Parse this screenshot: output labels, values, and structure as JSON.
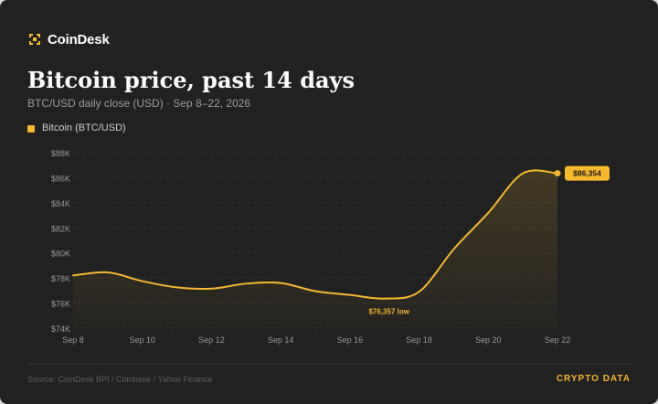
{
  "brand": {
    "name": "CoinDesk",
    "icon": "coindesk-logo-icon"
  },
  "header": {
    "title": "Bitcoin price, past 14 days",
    "subtitle": "BTC/USD daily close (USD) · Sep 8–22, 2026"
  },
  "legend": {
    "label": "Bitcoin (BTC/USD)"
  },
  "colors": {
    "background": "#212121",
    "accent": "#f5b82e",
    "grid": "#3a3a3a",
    "muted_text": "#9b9b9b"
  },
  "chart_data": {
    "type": "line",
    "title": "Bitcoin price, past 14 days",
    "subtitle": "BTC/USD daily close (USD) · Sep 8–22, 2026",
    "x": [
      "Sep 8",
      "Sep 9",
      "Sep 10",
      "Sep 11",
      "Sep 12",
      "Sep 13",
      "Sep 14",
      "Sep 15",
      "Sep 16",
      "Sep 17",
      "Sep 18",
      "Sep 19",
      "Sep 20",
      "Sep 21",
      "Sep 22"
    ],
    "series": [
      {
        "name": "Bitcoin (BTC/USD)",
        "values": [
          78200,
          78450,
          77750,
          77250,
          77150,
          77550,
          77600,
          76950,
          76650,
          76357,
          76900,
          80300,
          83200,
          86354,
          86354
        ]
      }
    ],
    "xticks": [
      "Sep 8",
      "Sep 10",
      "Sep 12",
      "Sep 14",
      "Sep 16",
      "Sep 18",
      "Sep 20",
      "Sep 22"
    ],
    "yticks": [
      "$74K",
      "$76K",
      "$78K",
      "$80K",
      "$82K",
      "$84K",
      "$86K",
      "$88K"
    ],
    "ylim": [
      74000,
      88000
    ],
    "xlabel": "",
    "ylabel": "",
    "grid": true,
    "legend_position": "top-left",
    "annotations": {
      "low": {
        "x": "Sep 17",
        "value": 76357,
        "text": "$76,357 low"
      },
      "last": {
        "x": "Sep 22",
        "value": 86354,
        "text": "$86,354"
      }
    }
  },
  "footer": {
    "source": "Source: CoinDesk BPI / Coinbase / Yahoo Finance",
    "tag": "CRYPTO DATA"
  }
}
